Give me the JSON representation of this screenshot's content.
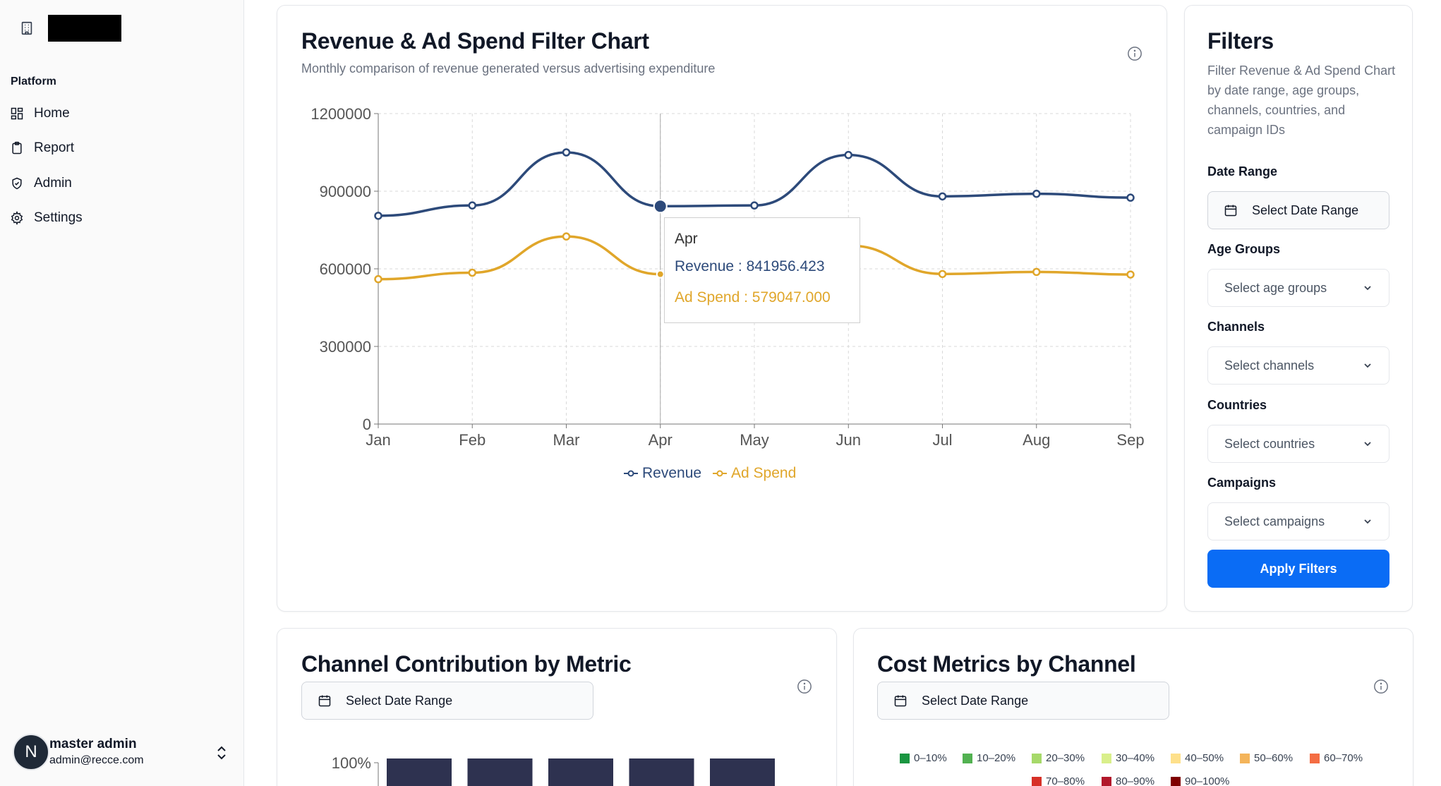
{
  "sidebar": {
    "section_label": "Platform",
    "items": [
      {
        "label": "Home",
        "icon": "dashboard-icon"
      },
      {
        "label": "Report",
        "icon": "clipboard-icon"
      },
      {
        "label": "Admin",
        "icon": "shield-icon"
      },
      {
        "label": "Settings",
        "icon": "gear-icon"
      }
    ],
    "user": {
      "initial": "N",
      "name": "master admin",
      "email": "admin@recce.com"
    }
  },
  "main_chart": {
    "title": "Revenue & Ad Spend Filter Chart",
    "subtitle": "Monthly comparison of revenue generated versus advertising expenditure",
    "tooltip": {
      "label": "Apr",
      "revenue_text": "Revenue : 841956.423",
      "adspend_text": "Ad Spend : 579047.000"
    }
  },
  "filters": {
    "title": "Filters",
    "description": "Filter Revenue & Ad Spend Chart by date range, age groups, channels, countries, and campaign IDs",
    "date_range_label": "Date Range",
    "date_range_value": "Select Date Range",
    "age_groups_label": "Age Groups",
    "age_groups_value": "Select age groups",
    "channels_label": "Channels",
    "channels_value": "Select channels",
    "countries_label": "Countries",
    "countries_value": "Select countries",
    "campaigns_label": "Campaigns",
    "campaigns_value": "Select campaigns",
    "apply_label": "Apply Filters"
  },
  "channel_card": {
    "title": "Channel Contribution by Metric",
    "date_value": "Select Date Range",
    "y_tick": "100%"
  },
  "cost_card": {
    "title": "Cost Metrics by Channel",
    "date_value": "Select Date Range",
    "legend": [
      {
        "label": "0–10%",
        "color": "#1a9641"
      },
      {
        "label": "10–20%",
        "color": "#52b151"
      },
      {
        "label": "20–30%",
        "color": "#a6d96a"
      },
      {
        "label": "30–40%",
        "color": "#d9ef8b"
      },
      {
        "label": "40–50%",
        "color": "#fee08b"
      },
      {
        "label": "50–60%",
        "color": "#f4b45a"
      },
      {
        "label": "60–70%",
        "color": "#f46d43"
      },
      {
        "label": "70–80%",
        "color": "#d73027"
      },
      {
        "label": "80–90%",
        "color": "#b2182b"
      },
      {
        "label": "90–100%",
        "color": "#7f0000"
      }
    ]
  },
  "chart_data": [
    {
      "type": "line",
      "title": "Revenue & Ad Spend Filter Chart",
      "categories": [
        "Jan",
        "Feb",
        "Mar",
        "Apr",
        "May",
        "Jun",
        "Jul",
        "Aug",
        "Sep"
      ],
      "yticks": [
        "0",
        "300000",
        "600000",
        "900000",
        "1200000"
      ],
      "ylim": [
        0,
        1200000
      ],
      "grid": true,
      "legend_position": "bottom",
      "series": [
        {
          "name": "Revenue",
          "color": "#2d4a7a",
          "values": [
            805000,
            845000,
            1050000,
            841956.423,
            845000,
            1040000,
            880000,
            890000,
            875000
          ]
        },
        {
          "name": "Ad Spend",
          "color": "#e0a62a",
          "values": [
            560000,
            585000,
            725000,
            579047,
            580000,
            690000,
            580000,
            588000,
            578000
          ]
        }
      ],
      "active_category": "Apr"
    },
    {
      "type": "bar",
      "title": "Channel Contribution by Metric",
      "yticks": [
        "100%"
      ],
      "bar_count_visible": 5,
      "series_colors": [
        "#2e3250",
        "#e9c382"
      ]
    }
  ]
}
